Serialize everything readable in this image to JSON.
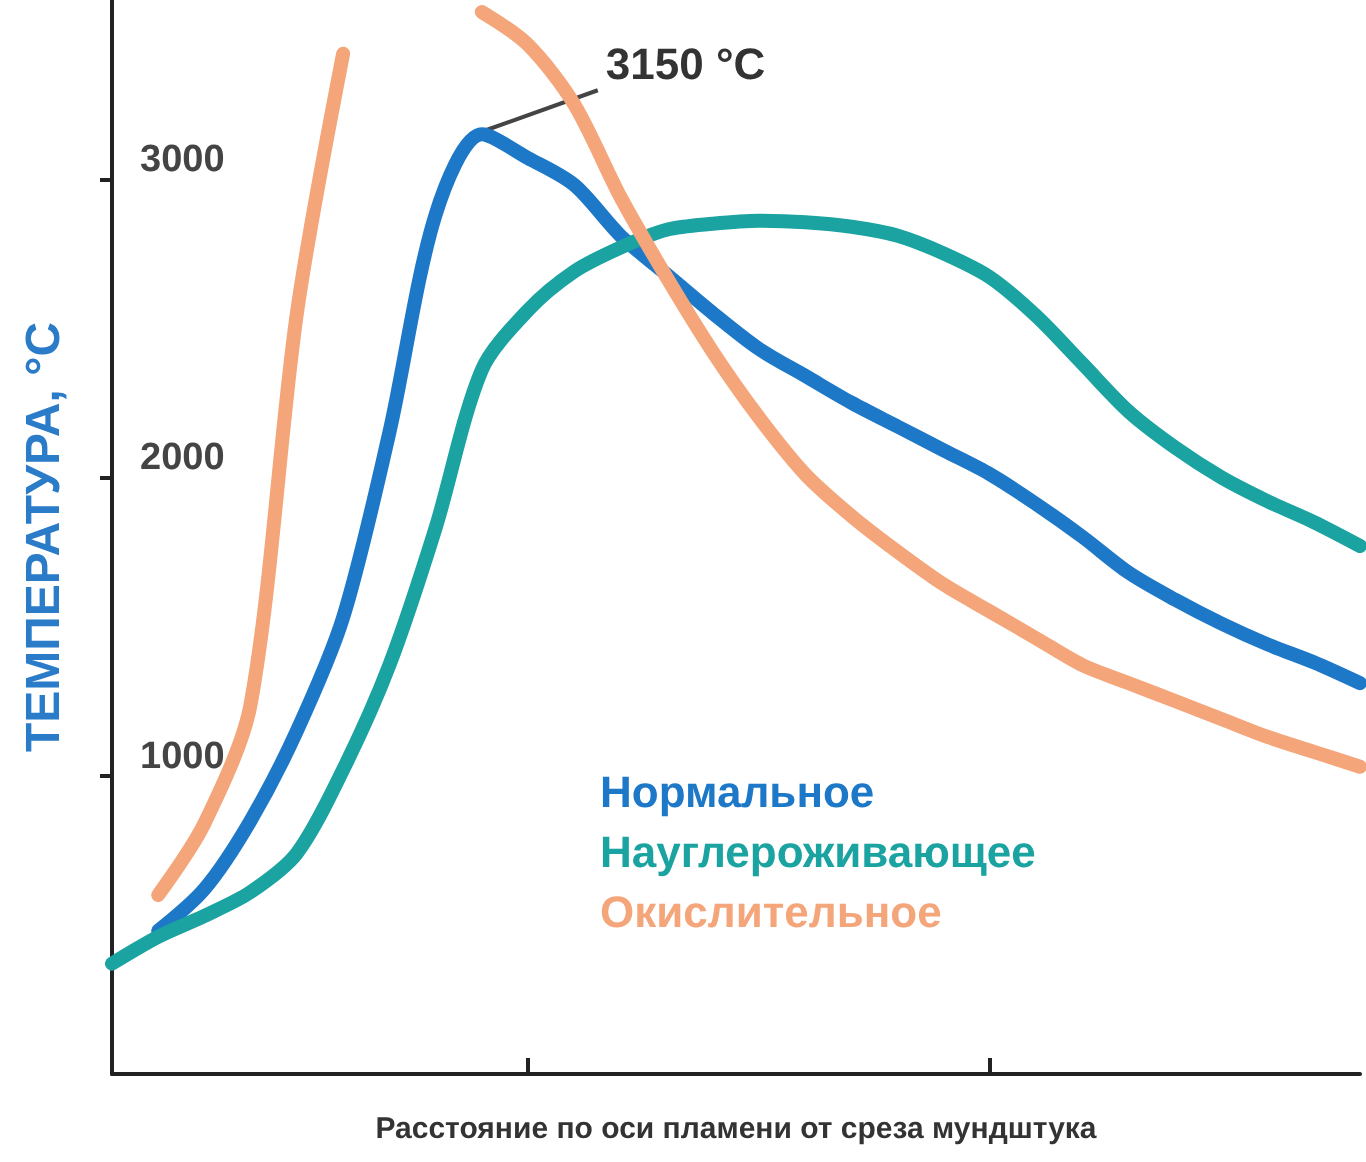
{
  "chart_data": {
    "type": "line",
    "ylabel": "ТЕМПЕРАТУРА, °С",
    "xlabel": "Расстояние по оси пламени от среза мундштука",
    "categories": [
      null,
      null,
      null,
      null,
      null,
      null,
      null,
      null,
      null,
      null,
      null,
      null,
      null,
      null,
      null,
      null,
      null,
      null,
      null,
      null,
      null,
      null,
      null,
      null,
      null,
      null,
      null,
      null
    ],
    "ylim": [
      0,
      3600
    ],
    "yticks": [
      1000,
      2000,
      3000
    ],
    "grid": false,
    "marker": "none",
    "line_style": "solid",
    "annotations": [
      "3150 °C"
    ],
    "series": [
      {
        "name": "Нормальное",
        "color": "#1e78c8",
        "values": [
          null,
          480,
          620,
          850,
          1150,
          1530,
          2150,
          2880,
          3150,
          3070,
          2980,
          2810,
          2680,
          2550,
          2430,
          2340,
          2250,
          2170,
          2090,
          2010,
          1910,
          1800,
          1680,
          1590,
          1510,
          1440,
          1380,
          1310
        ]
      },
      {
        "name": "Науглероживающее",
        "color": "#1aa3a0",
        "values": [
          370,
          460,
          530,
          610,
          740,
          1020,
          1370,
          1830,
          2360,
          2560,
          2690,
          2770,
          2830,
          2850,
          2860,
          2855,
          2840,
          2810,
          2750,
          2670,
          2540,
          2380,
          2220,
          2100,
          2000,
          1920,
          1850,
          1770
        ]
      },
      {
        "name": "Окислительное",
        "color": "#f4a57a",
        "values": [
          null,
          600,
          840,
          1240,
          2550,
          3420,
          null,
          null,
          3560,
          3450,
          3250,
          2940,
          2670,
          2420,
          2200,
          2010,
          1870,
          1750,
          1640,
          1550,
          1460,
          1370,
          1310,
          1250,
          1190,
          1130,
          1080,
          1030
        ]
      }
    ]
  }
}
